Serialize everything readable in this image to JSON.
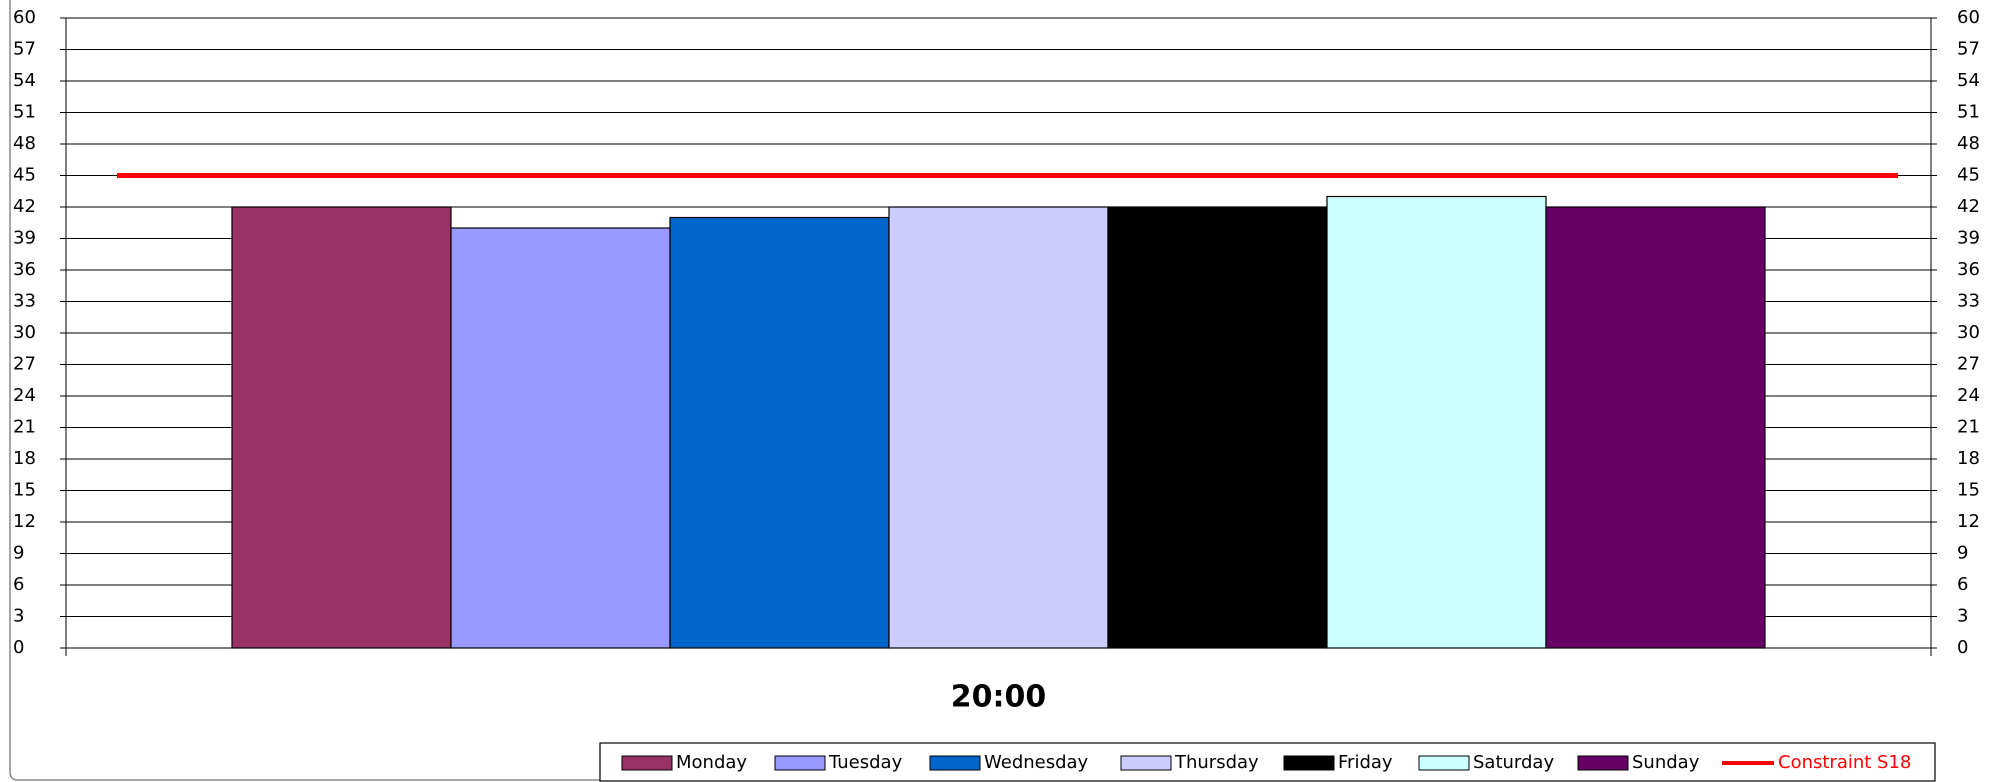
{
  "chart_data": {
    "type": "bar",
    "categories": [
      "20:00"
    ],
    "series": [
      {
        "name": "Monday",
        "color": "#993366",
        "values": [
          42
        ]
      },
      {
        "name": "Tuesday",
        "color": "#9999ff",
        "values": [
          40
        ]
      },
      {
        "name": "Wednesday",
        "color": "#0066cc",
        "values": [
          41
        ]
      },
      {
        "name": "Thursday",
        "color": "#ccccff",
        "values": [
          42
        ]
      },
      {
        "name": "Friday",
        "color": "#000000",
        "values": [
          42
        ]
      },
      {
        "name": "Saturday",
        "color": "#ccffff",
        "values": [
          43
        ]
      },
      {
        "name": "Sunday",
        "color": "#660066",
        "values": [
          42
        ]
      },
      {
        "name": "Constraint S18",
        "color": "#ff0000",
        "type": "line",
        "values": [
          45
        ]
      }
    ],
    "ylim": [
      0,
      60
    ],
    "yticks": [
      0,
      3,
      6,
      9,
      12,
      15,
      18,
      21,
      24,
      27,
      30,
      33,
      36,
      39,
      42,
      45,
      48,
      51,
      54,
      57,
      60
    ],
    "y2lim": [
      0,
      60
    ],
    "y2ticks": [
      0,
      3,
      6,
      9,
      12,
      15,
      18,
      21,
      24,
      27,
      30,
      33,
      36,
      39,
      42,
      45,
      48,
      51,
      54,
      57,
      60
    ],
    "grid": true,
    "legend": "bottom-right"
  }
}
